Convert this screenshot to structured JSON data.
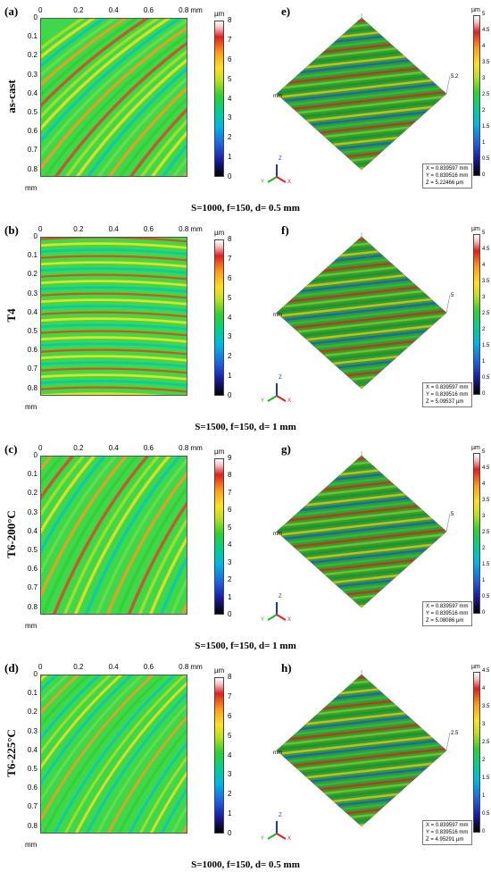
{
  "panels": [
    {
      "letter_2d": "(a)",
      "letter_3d": "e)",
      "condition": "as-cast",
      "caption": "S=1000, f=150, d= 0.5 mm",
      "cbar2d_ticks": [
        "8",
        "7",
        "6",
        "5",
        "4",
        "3",
        "2",
        "1",
        "0"
      ],
      "cbar3d_ticks": [
        "5",
        "4.5",
        "4",
        "3.5",
        "3",
        "2.5",
        "2",
        "1.5",
        "1",
        "0.5",
        "0"
      ],
      "z_readout": "Z = 5.22466 µm",
      "axis3d_top": "5.2"
    },
    {
      "letter_2d": "(b)",
      "letter_3d": "f)",
      "condition": "T4",
      "caption": "S=1500, f=150, d= 1 mm",
      "cbar2d_ticks": [
        "8",
        "7",
        "6",
        "5",
        "4",
        "3",
        "2",
        "1",
        "0"
      ],
      "cbar3d_ticks": [
        "5",
        "4.5",
        "4",
        "3.5",
        "3",
        "2.5",
        "2",
        "1.5",
        "1",
        "0.5",
        "0"
      ],
      "z_readout": "Z = 5.09537 µm",
      "axis3d_top": "5"
    },
    {
      "letter_2d": "(c)",
      "letter_3d": "g)",
      "condition": "T6-200°C",
      "caption": "S=1500, f=150, d= 1 mm",
      "cbar2d_ticks": [
        "9",
        "8",
        "7",
        "6",
        "5",
        "4",
        "3",
        "2",
        "1",
        "0"
      ],
      "cbar3d_ticks": [
        "5",
        "4.5",
        "4",
        "3.5",
        "3",
        "2.5",
        "2",
        "1.5",
        "1",
        "0.5",
        "0"
      ],
      "z_readout": "Z = 5.08086 µm",
      "axis3d_top": "5"
    },
    {
      "letter_2d": "(d)",
      "letter_3d": "h)",
      "condition": "T6-225°C",
      "caption": "S=1000, f=150, d= 0.5 mm",
      "cbar2d_ticks": [
        "8",
        "7",
        "6",
        "5",
        "4",
        "3",
        "2",
        "1",
        "0"
      ],
      "cbar3d_ticks": [
        "4.5",
        "4",
        "3.5",
        "3",
        "2.5",
        "2",
        "1.5",
        "1",
        "0.5",
        "0"
      ],
      "z_readout": "Z = 4.95291 µm",
      "axis3d_top": "2.5"
    }
  ],
  "x_ticks": [
    "0",
    "0.2",
    "0.4",
    "0.6",
    "0.8 mm"
  ],
  "y_ticks": [
    "0",
    "0.1",
    "0.2",
    "0.3",
    "0.4",
    "0.5",
    "0.6",
    "0.7",
    "0.8"
  ],
  "y_unit": "mm",
  "cbar_unit": "µm",
  "x_readout": "X = 0.839597 mm",
  "y_readout": "Y = 0.839516 mm",
  "axis3d_unit": "mm",
  "triad": {
    "x": "X",
    "y": "Y",
    "z": "Z"
  },
  "colors": {
    "low": "#1a2a8c",
    "mid": "#2fd02f",
    "high": "#e02020"
  }
}
